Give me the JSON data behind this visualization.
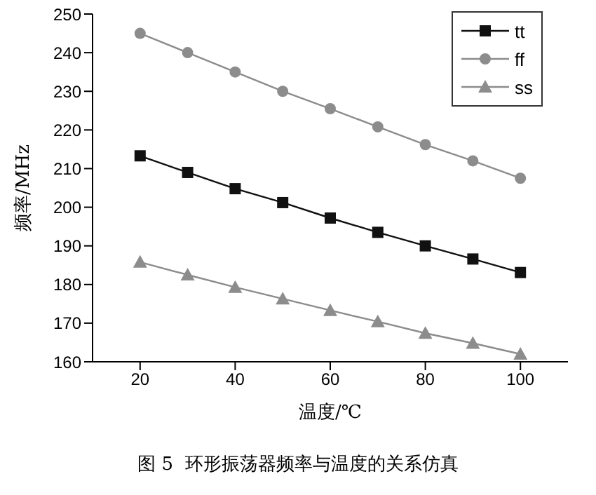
{
  "chart_data": {
    "type": "line",
    "xlabel": "温度/℃",
    "ylabel": "频率/MHz",
    "annotations": [
      "图 5  环形振荡器频率与温度的关系仿真"
    ],
    "x": [
      20,
      30,
      40,
      50,
      60,
      70,
      80,
      90,
      100
    ],
    "series": [
      {
        "name": "tt",
        "color": "#111111",
        "marker": "square",
        "values": [
          213.3,
          209,
          204.8,
          201.2,
          197.2,
          193.5,
          190,
          186.6,
          183.1
        ]
      },
      {
        "name": "ff",
        "color": "#8c8c8c",
        "marker": "circle",
        "values": [
          245,
          240,
          235,
          230,
          225.5,
          220.8,
          216.2,
          212,
          207.5
        ]
      },
      {
        "name": "ss",
        "color": "#8c8c8c",
        "marker": "triangle",
        "values": [
          185.8,
          182.5,
          179.3,
          176.3,
          173.3,
          170.4,
          167.4,
          164.8,
          162
        ]
      }
    ],
    "xlim": [
      10,
      110
    ],
    "xticks": [
      20,
      40,
      60,
      80,
      100
    ],
    "ylim": [
      160,
      250
    ],
    "yticks": [
      160,
      170,
      180,
      190,
      200,
      210,
      220,
      230,
      240,
      250
    ],
    "grid": false,
    "legend": "top right",
    "line_style": "solid"
  }
}
